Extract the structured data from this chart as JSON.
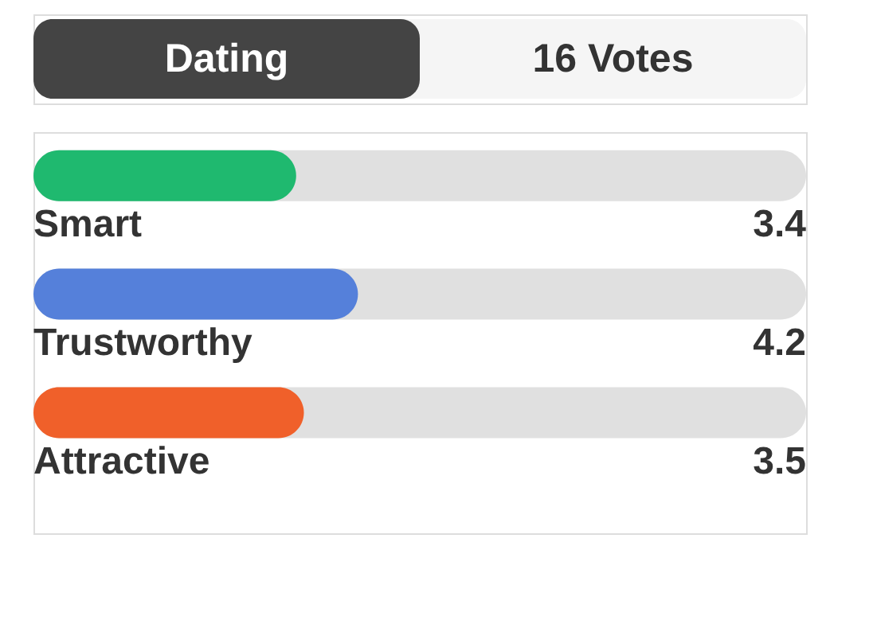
{
  "chart_data": {
    "type": "bar",
    "orientation": "horizontal",
    "title": "Dating",
    "subtitle": "16 Votes",
    "categories": [
      "Smart",
      "Trustworthy",
      "Attractive"
    ],
    "values": [
      3.4,
      4.2,
      3.5
    ],
    "colors": [
      "#1fb96f",
      "#5580da",
      "#f0602a"
    ],
    "xlim": [
      0,
      10
    ],
    "data_labels": true,
    "grid": false
  }
}
